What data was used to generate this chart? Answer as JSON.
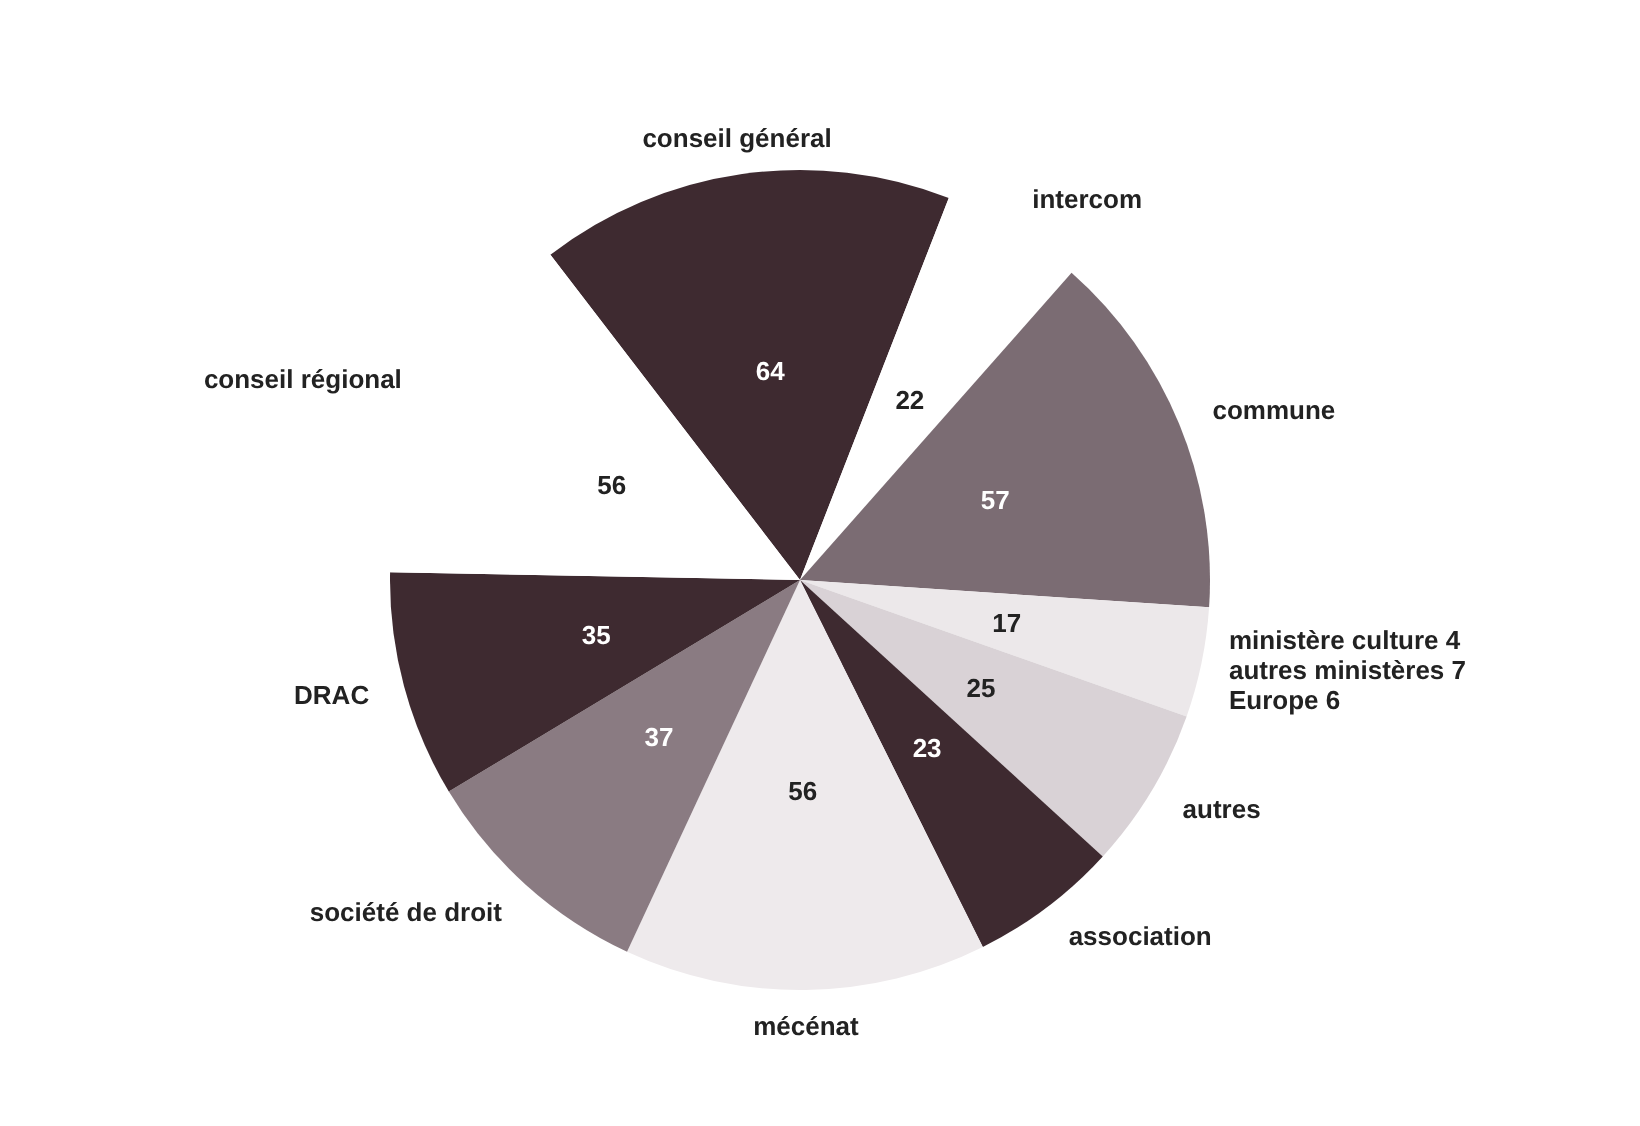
{
  "chart_data": {
    "type": "pie",
    "categories": [
      "conseil général",
      "intercom",
      "commune",
      null,
      "autres",
      "association",
      "mécénat",
      "société de droit",
      "DRAC",
      "conseil régional"
    ],
    "values": [
      64,
      22,
      57,
      17,
      25,
      23,
      56,
      37,
      35,
      56
    ],
    "colors": [
      "#3e2a30",
      "#ffffff",
      "#7b6c73",
      "#ece8ea",
      "#d9d2d6",
      "#3e2a30",
      "#eeeaec",
      "#8a7b82",
      "#3e2a30",
      "#ffffff"
    ],
    "data_labels": true,
    "annotations": [
      "ministère culture 4",
      "autres ministères 7",
      "Europe 6"
    ]
  }
}
